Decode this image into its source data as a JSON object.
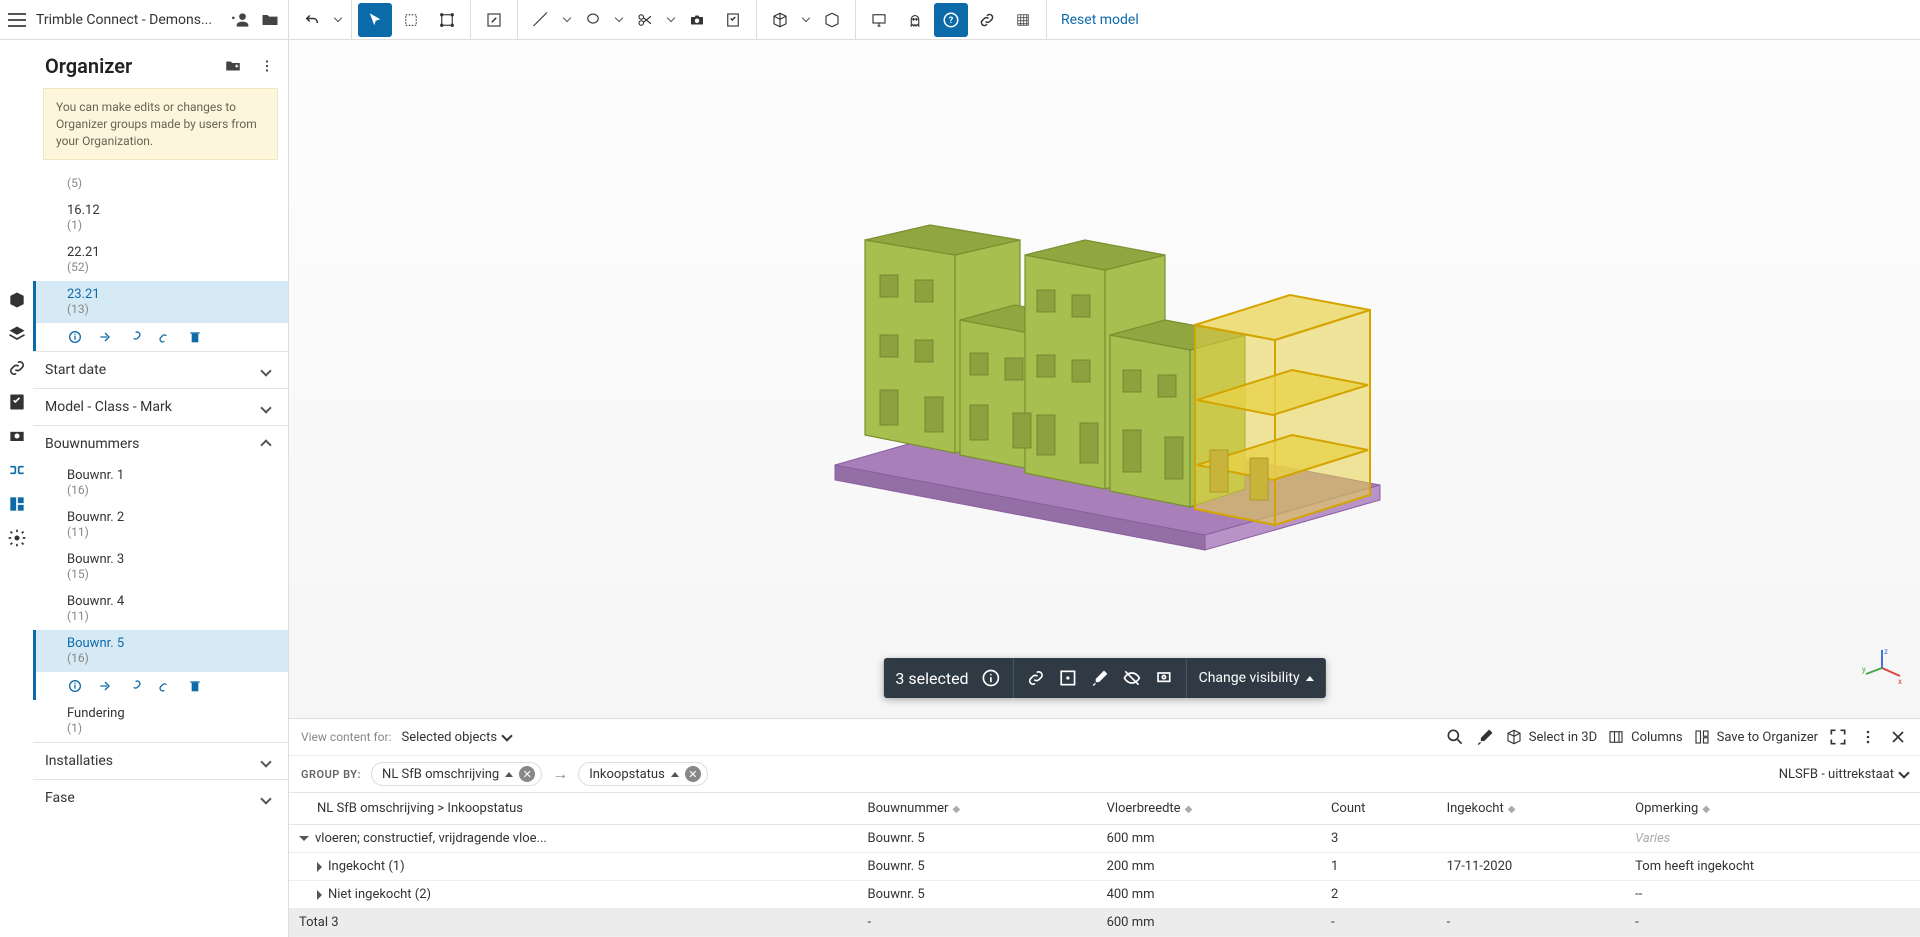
{
  "app": {
    "title": "Trimble Connect - Demons..."
  },
  "toolbar": {
    "reset_label": "Reset model"
  },
  "sidepanel": {
    "title": "Organizer",
    "notice": "You can make edits or changes to Organizer groups made by users from your Organization.",
    "top_items": [
      {
        "label": "",
        "count": "(5)",
        "selected": false
      },
      {
        "label": "16.12",
        "count": "(1)",
        "selected": false
      },
      {
        "label": "22.21",
        "count": "(52)",
        "selected": false
      },
      {
        "label": "23.21",
        "count": "(13)",
        "selected": true
      }
    ],
    "sections": [
      {
        "title": "Start date",
        "open": false
      },
      {
        "title": "Model - Class - Mark",
        "open": false
      },
      {
        "title": "Bouwnummers",
        "open": true,
        "items": [
          {
            "label": "Bouwnr. 1",
            "count": "(16)",
            "selected": false
          },
          {
            "label": "Bouwnr. 2",
            "count": "(11)",
            "selected": false
          },
          {
            "label": "Bouwnr. 3",
            "count": "(15)",
            "selected": false
          },
          {
            "label": "Bouwnr. 4",
            "count": "(11)",
            "selected": false
          },
          {
            "label": "Bouwnr. 5",
            "count": "(16)",
            "selected": true
          },
          {
            "label": "Fundering",
            "count": "(1)",
            "selected": false
          }
        ]
      },
      {
        "title": "Installaties",
        "open": false
      },
      {
        "title": "Fase",
        "open": false
      }
    ]
  },
  "selectionbar": {
    "count_label": "3 selected",
    "change_visibility": "Change visibility"
  },
  "datapanel": {
    "view_content_for_label": "View content for:",
    "view_content_for_value": "Selected objects",
    "select_in_3d": "Select in 3D",
    "columns": "Columns",
    "save_to_organizer": "Save to Organizer",
    "group_by_label": "GROUP BY:",
    "group_chips": [
      "NL SfB omschrijving",
      "Inkoopstatus"
    ],
    "right_selector": "NLSFB - uittrekstaat",
    "columns_headers": [
      "NL SfB omschrijving > Inkoopstatus",
      "Bouwnummer",
      "Vloerbreedte",
      "Count",
      "Ingekocht",
      "Opmerking"
    ],
    "rows": [
      {
        "type": "group",
        "cells": [
          "vloeren; constructief, vrijdragende vloe...",
          "Bouwnr. 5",
          "600 mm",
          "3",
          "",
          "Varies"
        ]
      },
      {
        "type": "sub",
        "cells": [
          "Ingekocht (1)",
          "Bouwnr. 5",
          "200 mm",
          "1",
          "17-11-2020",
          "Tom heeft ingekocht"
        ]
      },
      {
        "type": "sub",
        "cells": [
          "Niet ingekocht (2)",
          "Bouwnr. 5",
          "400 mm",
          "2",
          "",
          "--"
        ]
      },
      {
        "type": "total",
        "cells": [
          "Total 3",
          "-",
          "600 mm",
          "-",
          "-",
          "-"
        ]
      }
    ]
  },
  "colors": {
    "accent": "#0d6aa8",
    "building_fill": "#a7bf4e",
    "building_edge": "#7a8f2f",
    "highlight_fill": "#e8d24a",
    "highlight_edge": "#d4a400",
    "foundation": "#a87fb8"
  }
}
